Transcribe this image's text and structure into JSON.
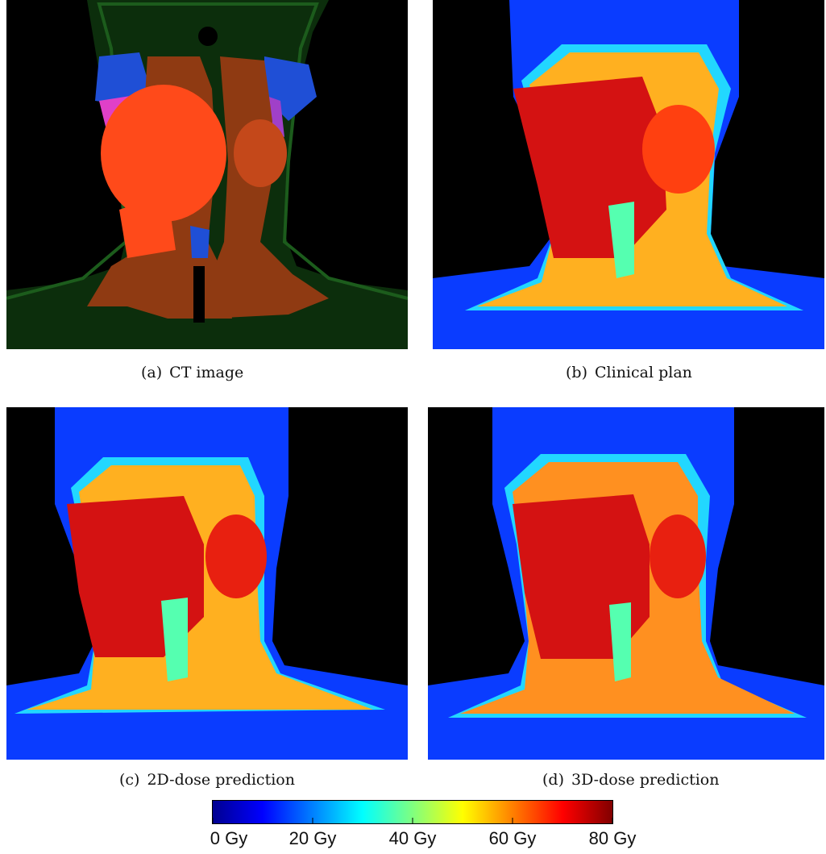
{
  "panels": [
    {
      "label": "(a)",
      "caption": "CT image"
    },
    {
      "label": "(b)",
      "caption": "Clinical plan"
    },
    {
      "label": "(c)",
      "caption": "2D-dose prediction"
    },
    {
      "label": "(d)",
      "caption": "3D-dose prediction"
    }
  ],
  "colorbar": {
    "colormap": "jet",
    "ticks": [
      "0 Gy",
      "20 Gy",
      "40 Gy",
      "60 Gy",
      "80 Gy"
    ]
  }
}
